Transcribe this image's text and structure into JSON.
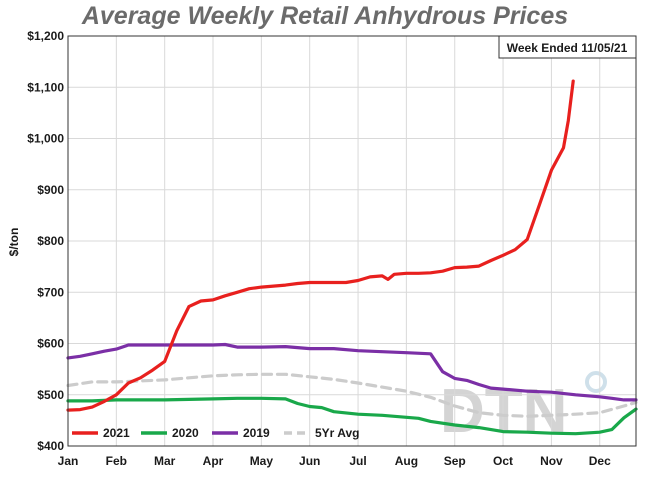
{
  "chart_data": {
    "type": "line",
    "title": "Average Weekly Retail Anhydrous Prices",
    "ylabel": "$/ton",
    "note": "Week Ended 11/05/21",
    "watermark": "DTN",
    "ylim": [
      400,
      1200
    ],
    "ytick_values": [
      400,
      500,
      600,
      700,
      800,
      900,
      1000,
      1100,
      1200
    ],
    "ytick_labels": [
      "$400",
      "$500",
      "$600",
      "$700",
      "$800",
      "$900",
      "$1,000",
      "$1,100",
      "$1,200"
    ],
    "xlim": [
      0,
      11.75
    ],
    "xtick_values": [
      0,
      1,
      2,
      3,
      4,
      5,
      6,
      7,
      8,
      9,
      10,
      11
    ],
    "xtick_labels": [
      "Jan",
      "Feb",
      "Mar",
      "Apr",
      "May",
      "Jun",
      "Jul",
      "Aug",
      "Sep",
      "Oct",
      "Nov",
      "Dec"
    ],
    "grid": true,
    "legend_position": "bottom-left",
    "series": [
      {
        "name": "2021",
        "color": "#e8201e",
        "dashed": false,
        "points": [
          [
            0,
            470
          ],
          [
            0.25,
            471
          ],
          [
            0.5,
            476
          ],
          [
            0.75,
            487
          ],
          [
            1,
            500
          ],
          [
            1.25,
            523
          ],
          [
            1.5,
            533
          ],
          [
            1.75,
            548
          ],
          [
            2,
            565
          ],
          [
            2.25,
            625
          ],
          [
            2.5,
            672
          ],
          [
            2.75,
            683
          ],
          [
            3,
            685
          ],
          [
            3.25,
            693
          ],
          [
            3.5,
            700
          ],
          [
            3.75,
            707
          ],
          [
            4,
            710
          ],
          [
            4.25,
            712
          ],
          [
            4.5,
            714
          ],
          [
            4.75,
            717
          ],
          [
            5,
            719
          ],
          [
            5.25,
            719
          ],
          [
            5.5,
            719
          ],
          [
            5.75,
            719
          ],
          [
            6,
            723
          ],
          [
            6.25,
            730
          ],
          [
            6.5,
            732
          ],
          [
            6.62,
            725
          ],
          [
            6.75,
            735
          ],
          [
            7,
            737
          ],
          [
            7.25,
            737
          ],
          [
            7.5,
            738
          ],
          [
            7.75,
            741
          ],
          [
            8,
            748
          ],
          [
            8.25,
            749
          ],
          [
            8.5,
            751
          ],
          [
            8.75,
            762
          ],
          [
            9,
            772
          ],
          [
            9.25,
            783
          ],
          [
            9.5,
            803
          ],
          [
            9.75,
            870
          ],
          [
            10,
            938
          ],
          [
            10.25,
            982
          ],
          [
            10.35,
            1035
          ],
          [
            10.45,
            1112
          ]
        ]
      },
      {
        "name": "2020",
        "color": "#19a84a",
        "dashed": false,
        "points": [
          [
            0,
            488
          ],
          [
            0.5,
            488
          ],
          [
            1,
            490
          ],
          [
            1.5,
            490
          ],
          [
            2,
            490
          ],
          [
            2.5,
            491
          ],
          [
            3,
            492
          ],
          [
            3.5,
            493
          ],
          [
            4,
            493
          ],
          [
            4.5,
            492
          ],
          [
            4.75,
            483
          ],
          [
            5,
            477
          ],
          [
            5.25,
            475
          ],
          [
            5.5,
            467
          ],
          [
            6,
            462
          ],
          [
            6.5,
            460
          ],
          [
            7,
            456
          ],
          [
            7.25,
            454
          ],
          [
            7.5,
            448
          ],
          [
            8,
            441
          ],
          [
            8.5,
            436
          ],
          [
            8.75,
            432
          ],
          [
            9,
            428
          ],
          [
            9.5,
            427
          ],
          [
            10,
            425
          ],
          [
            10.5,
            424
          ],
          [
            11,
            427
          ],
          [
            11.25,
            432
          ],
          [
            11.5,
            455
          ],
          [
            11.75,
            472
          ]
        ]
      },
      {
        "name": "2019",
        "color": "#7b2fa6",
        "dashed": false,
        "points": [
          [
            0,
            572
          ],
          [
            0.25,
            575
          ],
          [
            0.5,
            580
          ],
          [
            0.75,
            585
          ],
          [
            1,
            589
          ],
          [
            1.25,
            597
          ],
          [
            1.5,
            597
          ],
          [
            2,
            597
          ],
          [
            2.5,
            597
          ],
          [
            3,
            597
          ],
          [
            3.25,
            598
          ],
          [
            3.5,
            593
          ],
          [
            4,
            593
          ],
          [
            4.5,
            594
          ],
          [
            5,
            590
          ],
          [
            5.5,
            590
          ],
          [
            6,
            586
          ],
          [
            6.5,
            584
          ],
          [
            7,
            582
          ],
          [
            7.5,
            580
          ],
          [
            7.75,
            545
          ],
          [
            8,
            532
          ],
          [
            8.25,
            528
          ],
          [
            8.5,
            520
          ],
          [
            8.75,
            513
          ],
          [
            9,
            511
          ],
          [
            9.5,
            507
          ],
          [
            10,
            505
          ],
          [
            10.5,
            500
          ],
          [
            11,
            496
          ],
          [
            11.25,
            493
          ],
          [
            11.5,
            490
          ],
          [
            11.75,
            490
          ]
        ]
      },
      {
        "name": "5Yr Avg",
        "color": "#cccccc",
        "dashed": true,
        "points": [
          [
            0,
            518
          ],
          [
            0.5,
            525
          ],
          [
            1,
            525
          ],
          [
            1.5,
            527
          ],
          [
            2,
            529
          ],
          [
            2.5,
            533
          ],
          [
            3,
            537
          ],
          [
            3.5,
            539
          ],
          [
            4,
            540
          ],
          [
            4.5,
            540
          ],
          [
            5,
            535
          ],
          [
            5.5,
            530
          ],
          [
            6,
            523
          ],
          [
            6.5,
            515
          ],
          [
            7,
            507
          ],
          [
            7.5,
            495
          ],
          [
            8,
            478
          ],
          [
            8.5,
            465
          ],
          [
            9,
            460
          ],
          [
            9.5,
            458
          ],
          [
            10,
            460
          ],
          [
            10.5,
            462
          ],
          [
            11,
            465
          ],
          [
            11.5,
            478
          ],
          [
            11.75,
            485
          ]
        ]
      }
    ]
  }
}
